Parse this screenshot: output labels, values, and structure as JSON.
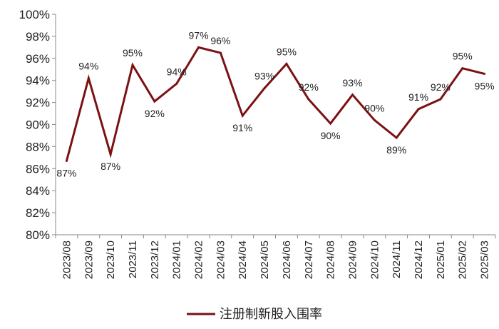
{
  "chart_data": {
    "type": "line",
    "categories": [
      "2023/08",
      "2023/09",
      "2023/10",
      "2023/11",
      "2023/12",
      "2024/01",
      "2024/02",
      "2024/03",
      "2024/04",
      "2024/05",
      "2024/06",
      "2024/07",
      "2024/08",
      "2024/09",
      "2024/10",
      "2024/11",
      "2024/12",
      "2025/01",
      "2025/02",
      "2025/03"
    ],
    "series": [
      {
        "name": "注册制新股入围率",
        "values": [
          86.7,
          94.2,
          87.3,
          95.4,
          92.1,
          93.7,
          97.0,
          96.5,
          90.8,
          93.3,
          95.5,
          92.3,
          90.1,
          92.7,
          90.4,
          88.8,
          91.4,
          92.3,
          95.1,
          94.6
        ],
        "labels": [
          "87%",
          "94%",
          "87%",
          "95%",
          "92%",
          "94%",
          "97%",
          "96%",
          "91%",
          "93%",
          "95%",
          "92%",
          "90%",
          "93%",
          "90%",
          "89%",
          "91%",
          "92%",
          "95%",
          "95%"
        ]
      }
    ],
    "ylim": [
      80,
      100
    ],
    "y_ticks": [
      "80%",
      "82%",
      "84%",
      "86%",
      "88%",
      "90%",
      "92%",
      "94%",
      "96%",
      "98%",
      "100%"
    ],
    "color": "#7b1113",
    "grid": false,
    "legend": "bottom"
  }
}
